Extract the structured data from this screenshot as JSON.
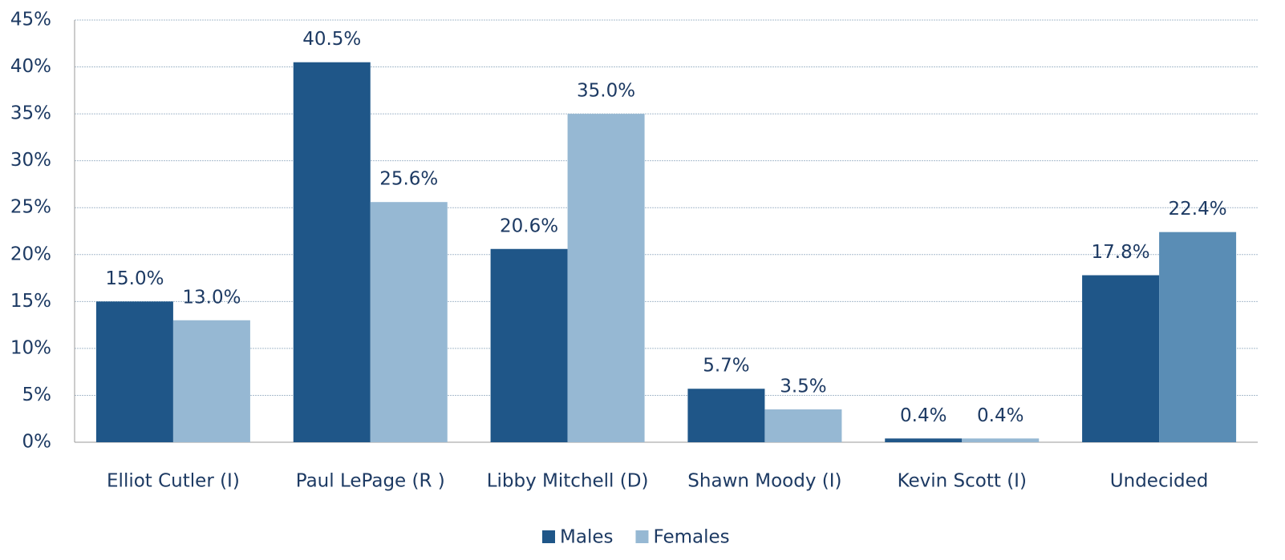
{
  "chart_data": {
    "type": "bar",
    "categories": [
      "Elliot Cutler (I)",
      "Paul LePage (R )",
      "Libby Mitchell (D)",
      "Shawn Moody (I)",
      "Kevin Scott (I)",
      "Undecided"
    ],
    "series": [
      {
        "name": "Males",
        "color": "#1f5688",
        "values": [
          15.0,
          40.5,
          20.6,
          5.7,
          0.4,
          17.8
        ],
        "value_labels": [
          "15.0%",
          "40.5%",
          "20.6%",
          "5.7%",
          "0.4%",
          "17.8%"
        ]
      },
      {
        "name": "Females",
        "color": "#96b8d3",
        "colors": [
          "#96b8d3",
          "#96b8d3",
          "#96b8d3",
          "#96b8d3",
          "#96b8d3",
          "#5a8db5"
        ],
        "values": [
          13.0,
          25.6,
          35.0,
          3.5,
          0.4,
          22.4
        ],
        "value_labels": [
          "13.0%",
          "25.6%",
          "35.0%",
          "3.5%",
          "0.4%",
          "22.4%"
        ]
      }
    ],
    "ylim": [
      0,
      45
    ],
    "yticks": [
      {
        "value": 0,
        "label": "0%"
      },
      {
        "value": 5,
        "label": "5%"
      },
      {
        "value": 10,
        "label": "10%"
      },
      {
        "value": 15,
        "label": "15%"
      },
      {
        "value": 20,
        "label": "20%"
      },
      {
        "value": 25,
        "label": "25%"
      },
      {
        "value": 30,
        "label": "30%"
      },
      {
        "value": 35,
        "label": "35%"
      },
      {
        "value": 40,
        "label": "40%"
      },
      {
        "value": 45,
        "label": "45%"
      }
    ],
    "grid": true,
    "legend": "bottom"
  }
}
